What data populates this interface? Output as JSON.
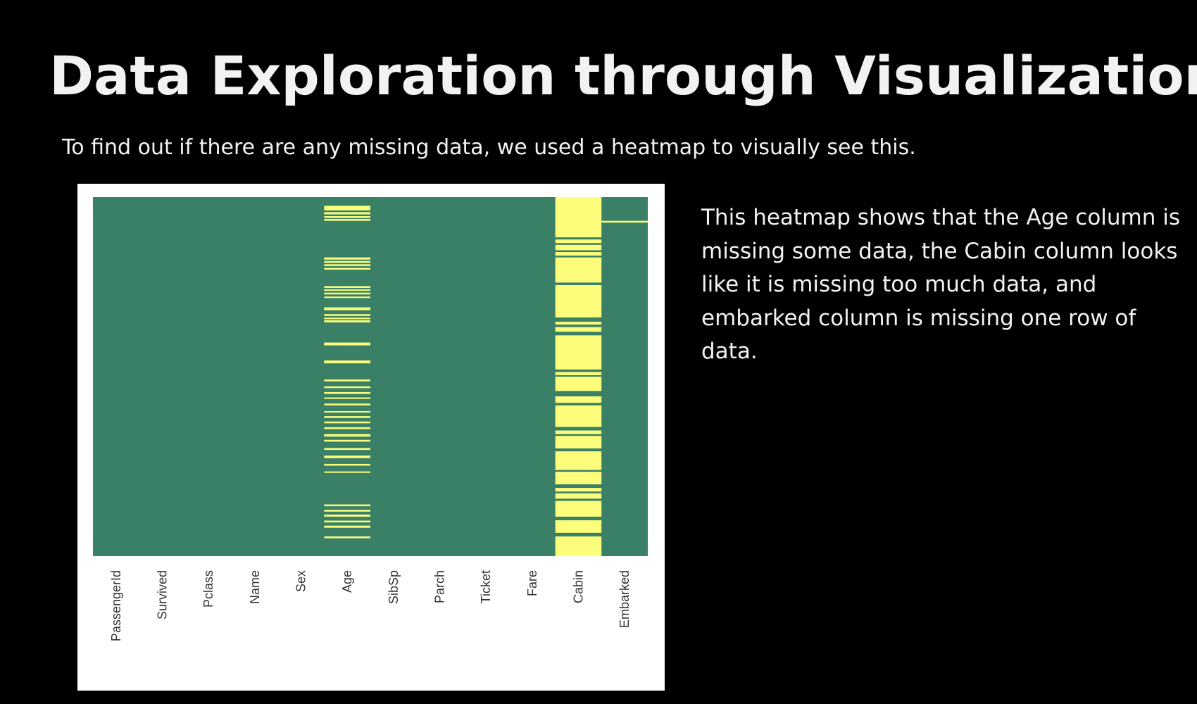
{
  "slide": {
    "title": "Data Exploration through Visualization",
    "intro": "To find out if there are any missing data, we used a heatmap to visually see this.",
    "description": "This heatmap shows that the Age column is missing some data, the Cabin column looks like it is missing too much data, and embarked column is missing one row of data."
  },
  "colors": {
    "background": "#000000",
    "text": "#f2f2f2",
    "panel": "#ffffff",
    "present": "#3a8067",
    "missing": "#fcfd7a"
  },
  "chart_data": {
    "type": "heatmap",
    "title": "",
    "xlabel": "",
    "ylabel": "",
    "x_tick_rotation": -90,
    "grid": false,
    "legend": "none",
    "categories": [
      "PassengerId",
      "Survived",
      "Pclass",
      "Name",
      "Sex",
      "Age",
      "SibSp",
      "Parch",
      "Ticket",
      "Fare",
      "Cabin",
      "Embarked"
    ],
    "row_range": [
      0,
      1
    ],
    "value_meaning": {
      "present": "not null",
      "missing": "null"
    },
    "missing_rows": {
      "Age": [
        [
          0.024,
          0.037
        ],
        [
          0.042,
          0.048
        ],
        [
          0.053,
          0.058
        ],
        [
          0.061,
          0.066
        ],
        [
          0.168,
          0.174
        ],
        [
          0.178,
          0.183
        ],
        [
          0.187,
          0.192
        ],
        [
          0.197,
          0.202
        ],
        [
          0.248,
          0.253
        ],
        [
          0.257,
          0.261
        ],
        [
          0.266,
          0.271
        ],
        [
          0.277,
          0.281
        ],
        [
          0.307,
          0.315
        ],
        [
          0.326,
          0.331
        ],
        [
          0.336,
          0.34
        ],
        [
          0.343,
          0.349
        ],
        [
          0.405,
          0.413
        ],
        [
          0.455,
          0.463
        ],
        [
          0.508,
          0.513
        ],
        [
          0.527,
          0.532
        ],
        [
          0.543,
          0.548
        ],
        [
          0.558,
          0.562
        ],
        [
          0.575,
          0.58
        ],
        [
          0.596,
          0.6
        ],
        [
          0.61,
          0.615
        ],
        [
          0.625,
          0.63
        ],
        [
          0.641,
          0.646
        ],
        [
          0.66,
          0.667
        ],
        [
          0.676,
          0.681
        ],
        [
          0.699,
          0.704
        ],
        [
          0.72,
          0.727
        ],
        [
          0.743,
          0.748
        ],
        [
          0.764,
          0.768
        ],
        [
          0.856,
          0.861
        ],
        [
          0.871,
          0.876
        ],
        [
          0.884,
          0.89
        ],
        [
          0.901,
          0.906
        ],
        [
          0.915,
          0.921
        ],
        [
          0.945,
          0.95
        ]
      ],
      "Cabin": [
        [
          0.0,
          0.112
        ],
        [
          0.118,
          0.128
        ],
        [
          0.133,
          0.148
        ],
        [
          0.153,
          0.163
        ],
        [
          0.168,
          0.238
        ],
        [
          0.245,
          0.335
        ],
        [
          0.347,
          0.355
        ],
        [
          0.362,
          0.375
        ],
        [
          0.385,
          0.48
        ],
        [
          0.487,
          0.496
        ],
        [
          0.5,
          0.54
        ],
        [
          0.555,
          0.573
        ],
        [
          0.58,
          0.64
        ],
        [
          0.65,
          0.66
        ],
        [
          0.665,
          0.7
        ],
        [
          0.708,
          0.76
        ],
        [
          0.765,
          0.8
        ],
        [
          0.81,
          0.82
        ],
        [
          0.825,
          0.84
        ],
        [
          0.846,
          0.89
        ],
        [
          0.9,
          0.935
        ],
        [
          0.945,
          1.0
        ]
      ],
      "Embarked": [
        [
          0.066,
          0.071
        ]
      ]
    }
  }
}
